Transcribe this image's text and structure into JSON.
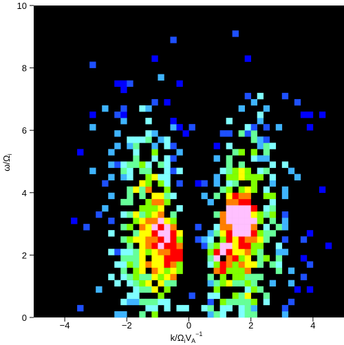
{
  "chart_data": {
    "type": "heatmap",
    "title": "",
    "xlabel": "k/Ω_i V_A^-1",
    "ylabel": "ω/Ω_i",
    "xlim": [
      -5,
      5
    ],
    "ylim": [
      0,
      10
    ],
    "x_ticks": [
      "-4",
      "-2",
      "0",
      "2",
      "4"
    ],
    "y_ticks": [
      "0",
      "2",
      "4",
      "6",
      "8",
      "10"
    ],
    "colors": {
      "background": "#000000",
      "ramp": [
        "#0000ff",
        "#1e50ff",
        "#3fb4ff",
        "#7fffff",
        "#66ff99",
        "#80ff00",
        "#ffff00",
        "#ff7f00",
        "#ff0000",
        "#ffc0ff"
      ]
    },
    "grid": false,
    "legend": "none",
    "values_description_note": "",
    "distribution": {
      "branches": [
        {
          "center_k": -1.0,
          "peak_omega": 2.8,
          "spread_k": 1.0
        },
        {
          "center_k": 1.6,
          "peak_omega": 2.8,
          "spread_k": 1.0
        }
      ],
      "peak_points": [
        {
          "k": -0.7,
          "omega": 2.7
        },
        {
          "k": -0.35,
          "omega": 2.0
        },
        {
          "k": 1.0,
          "omega": 2.0
        },
        {
          "k": 1.75,
          "omega": 3.1
        },
        {
          "k": 1.4,
          "omega": 3.3
        }
      ]
    }
  }
}
